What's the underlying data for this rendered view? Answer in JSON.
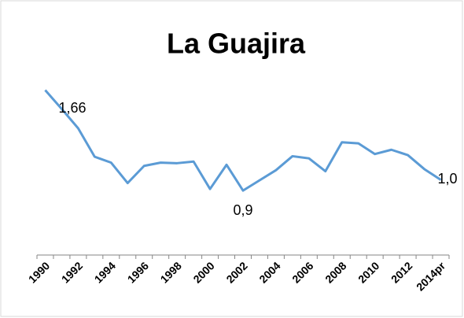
{
  "chart_data": {
    "type": "line",
    "title": "La Guajira",
    "categories": [
      "1990",
      null,
      "1992",
      null,
      "1994",
      null,
      "1996",
      null,
      "1998",
      null,
      "2000",
      null,
      "2002",
      null,
      "2004",
      null,
      "2006",
      null,
      "2008",
      null,
      "2010",
      null,
      "2012",
      null,
      "2014pr"
    ],
    "values": [
      1.835,
      1.66,
      1.48,
      1.215,
      1.16,
      0.97,
      1.13,
      1.16,
      1.155,
      1.17,
      0.915,
      1.14,
      0.9,
      0.995,
      1.09,
      1.22,
      1.2,
      1.08,
      1.35,
      1.34,
      1.24,
      1.28,
      1.23,
      1.1,
      1.0
    ],
    "value_labels": [
      null,
      "1,66",
      null,
      null,
      null,
      null,
      null,
      null,
      null,
      null,
      null,
      null,
      "0,9",
      null,
      null,
      null,
      null,
      null,
      null,
      null,
      null,
      null,
      null,
      null,
      "1,0"
    ],
    "color": "#5b9bd5",
    "ylim": [
      0.3,
      2.0
    ]
  }
}
